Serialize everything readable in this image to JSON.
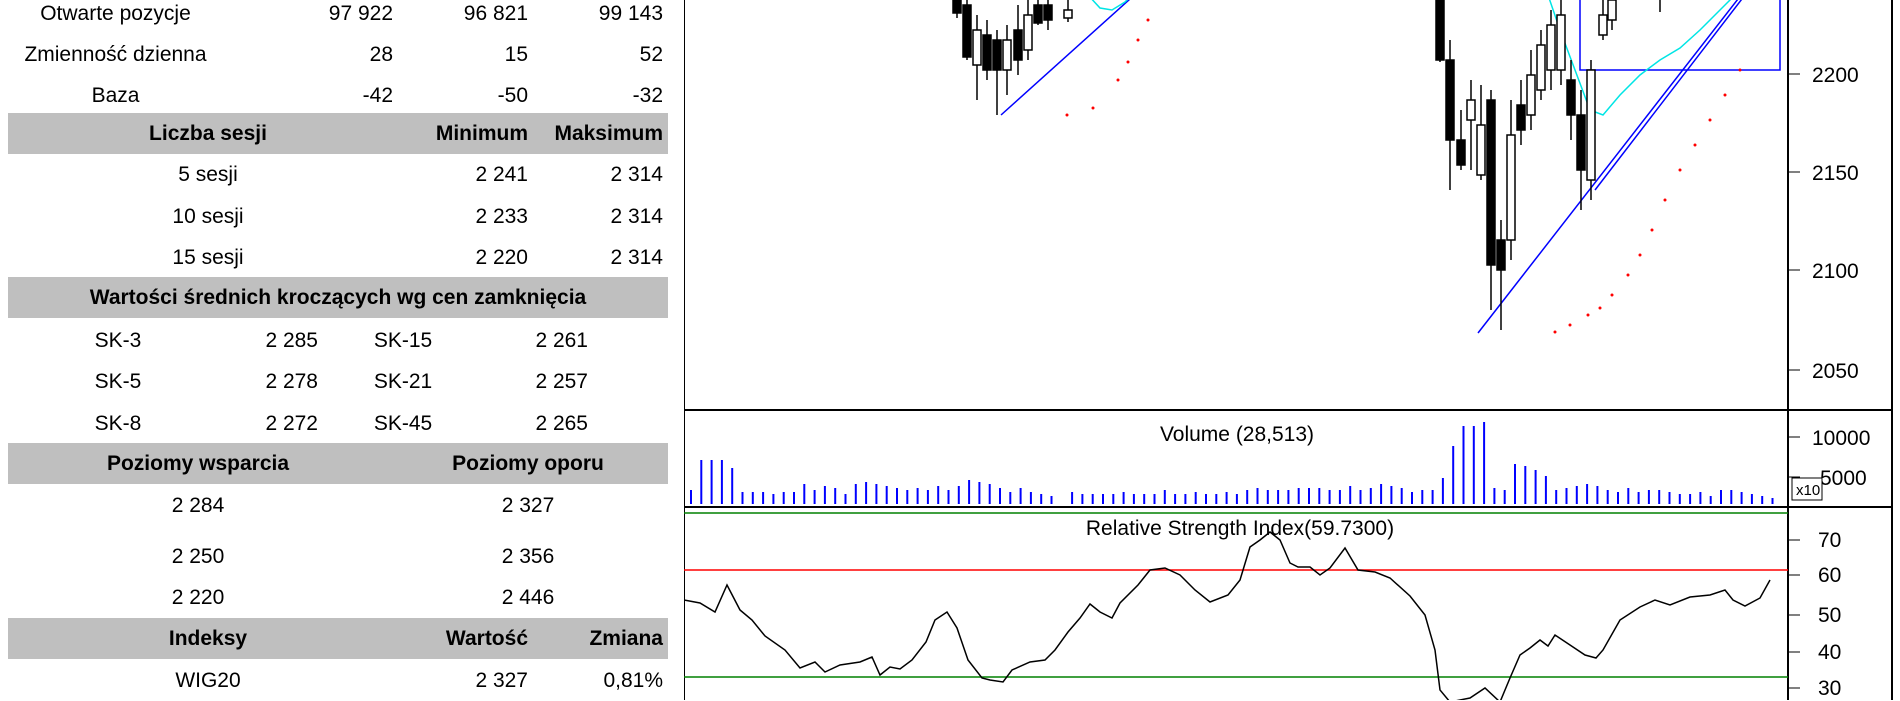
{
  "table_top": [
    {
      "label": "Otwarte pozycje",
      "v1": "97 922",
      "v2": "96 821",
      "v3": "99 143"
    },
    {
      "label": "Zmienność dzienna",
      "v1": "28",
      "v2": "15",
      "v3": "52"
    },
    {
      "label": "Baza",
      "v1": "-42",
      "v2": "-50",
      "v3": "-32"
    }
  ],
  "sessions": {
    "header": {
      "c1": "Liczba sesji",
      "c2": "Minimum",
      "c3": "Maksimum"
    },
    "rows": [
      {
        "label": "5 sesji",
        "min": "2 241",
        "max": "2 314"
      },
      {
        "label": "10 sesji",
        "min": "2 233",
        "max": "2 314"
      },
      {
        "label": "15 sesji",
        "min": "2 220",
        "max": "2 314"
      }
    ]
  },
  "ma": {
    "header": "Wartości średnich kroczących wg cen zamknięcia",
    "rows": [
      {
        "n1": "SK-3",
        "v1": "2 285",
        "n2": "SK-15",
        "v2": "2 261"
      },
      {
        "n1": "SK-5",
        "v1": "2 278",
        "n2": "SK-21",
        "v2": "2 257"
      },
      {
        "n1": "SK-8",
        "v1": "2 272",
        "n2": "SK-45",
        "v2": "2 265"
      }
    ]
  },
  "levels": {
    "header": {
      "support": "Poziomy wsparcia",
      "resistance": "Poziomy oporu"
    },
    "rows": [
      {
        "support": "2 284",
        "resistance": "2 327"
      },
      {
        "support": "2 250",
        "resistance": "2 356"
      },
      {
        "support": "2 220",
        "resistance": "2 446"
      }
    ]
  },
  "indexes": {
    "header": {
      "c1": "Indeksy",
      "c2": "Wartość",
      "c3": "Zmiana"
    },
    "rows": [
      {
        "name": "WIG20",
        "value": "2 327",
        "change": "0,81%"
      }
    ]
  },
  "chart": {
    "price_ticks": [
      "2200",
      "2150",
      "2100",
      "2050"
    ],
    "volume_title": "Volume (28,513)",
    "volume_ticks": [
      "10000",
      "5000"
    ],
    "volume_multiplier": "x10",
    "rsi_title": "Relative Strength Index(59.7300)",
    "rsi_ticks": [
      "70",
      "60",
      "50",
      "40",
      "30"
    ],
    "colors": {
      "candle": "#000000",
      "trend": "#0000ff",
      "ma": "#00e5e5",
      "sar": "#ff0000",
      "rsi_upper": "#ff0000",
      "rsi_band": "#008000",
      "volume": "#0000ff"
    }
  }
}
